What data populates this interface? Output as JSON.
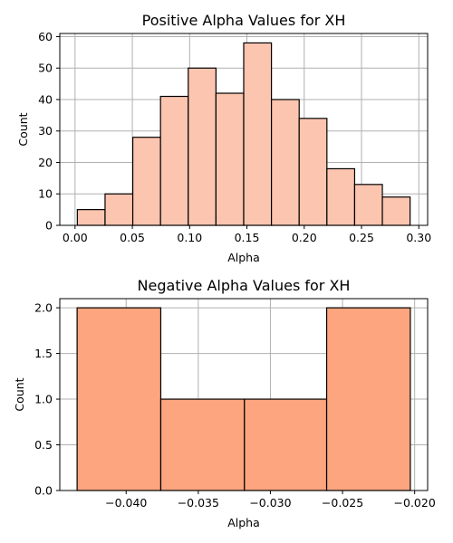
{
  "chart_data": [
    {
      "type": "bar",
      "title": "Positive Alpha Values for XH",
      "xlabel": "Alpha",
      "ylabel": "Count",
      "bar_color": "#fcc5b0",
      "bin_edges": [
        0.002,
        0.0262,
        0.0504,
        0.0746,
        0.0988,
        0.123,
        0.1472,
        0.1714,
        0.1956,
        0.2198,
        0.244,
        0.2682,
        0.2924
      ],
      "values": [
        5,
        10,
        28,
        41,
        50,
        42,
        58,
        40,
        34,
        18,
        13,
        9
      ],
      "xlim": [
        -0.0133,
        0.3077
      ],
      "ylim": [
        0,
        61
      ],
      "xticks": [
        0.0,
        0.05,
        0.1,
        0.15,
        0.2,
        0.25,
        0.3
      ],
      "xtick_labels": [
        "0.00",
        "0.05",
        "0.10",
        "0.15",
        "0.20",
        "0.25",
        "0.30"
      ],
      "yticks": [
        0,
        10,
        20,
        30,
        40,
        50,
        60
      ],
      "ytick_labels": [
        "0",
        "10",
        "20",
        "30",
        "40",
        "50",
        "60"
      ],
      "grid": true
    },
    {
      "type": "bar",
      "title": "Negative Alpha Values for XH",
      "xlabel": "Alpha",
      "ylabel": "Count",
      "bar_color": "#fca57e",
      "bin_edges": [
        -0.0434,
        -0.0376,
        -0.0318,
        -0.0261,
        -0.0203
      ],
      "values": [
        2,
        1,
        1,
        2
      ],
      "xlim": [
        -0.0446,
        -0.0191
      ],
      "ylim": [
        0,
        2.1
      ],
      "xticks": [
        -0.04,
        -0.035,
        -0.03,
        -0.025,
        -0.02
      ],
      "xtick_labels": [
        "−0.040",
        "−0.035",
        "−0.030",
        "−0.025",
        "−0.020"
      ],
      "yticks": [
        0,
        0.5,
        1.0,
        1.5,
        2.0
      ],
      "ytick_labels": [
        "0.0",
        "0.5",
        "1.0",
        "1.5",
        "2.0"
      ],
      "grid": true
    }
  ]
}
